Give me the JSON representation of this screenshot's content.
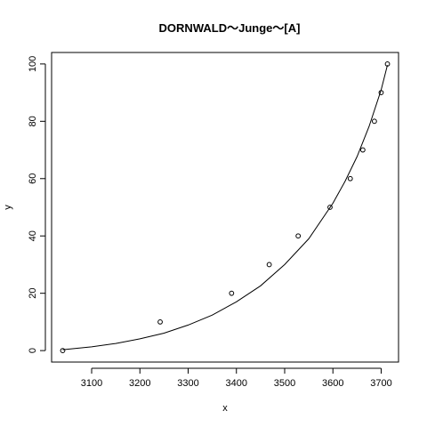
{
  "chart_data": {
    "type": "scatter",
    "title": "DORNWALD～Junge～[A]",
    "xlabel": "x",
    "ylabel": "y",
    "xlim": [
      3017,
      3736
    ],
    "ylim": [
      -4,
      104
    ],
    "x_ticks": [
      3100,
      3200,
      3300,
      3400,
      3500,
      3600,
      3700
    ],
    "y_ticks": [
      0,
      20,
      40,
      60,
      80,
      100
    ],
    "grid": false,
    "points": [
      {
        "x": 3040,
        "y": 0
      },
      {
        "x": 3242,
        "y": 10
      },
      {
        "x": 3390,
        "y": 20
      },
      {
        "x": 3468,
        "y": 30
      },
      {
        "x": 3528,
        "y": 40
      },
      {
        "x": 3594,
        "y": 50
      },
      {
        "x": 3636,
        "y": 60
      },
      {
        "x": 3662,
        "y": 70
      },
      {
        "x": 3686,
        "y": 80
      },
      {
        "x": 3700,
        "y": 90
      },
      {
        "x": 3713,
        "y": 100
      }
    ],
    "fitted_curve": {
      "x": [
        3040,
        3100,
        3150,
        3200,
        3250,
        3300,
        3350,
        3400,
        3450,
        3500,
        3550,
        3600,
        3625,
        3650,
        3675,
        3700,
        3713
      ],
      "y": [
        0.3,
        1.3,
        2.5,
        4.1,
        6.1,
        8.9,
        12.4,
        17.0,
        22.6,
        30.0,
        39.0,
        51.4,
        59.0,
        67.7,
        78.2,
        91.0,
        99.6
      ]
    }
  }
}
